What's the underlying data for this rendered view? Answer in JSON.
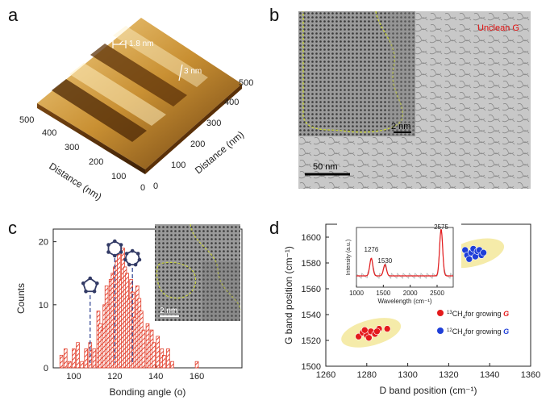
{
  "panels": {
    "a": {
      "letter": "a",
      "step_label": "1.8 nm",
      "height_label": "3 nm",
      "x_axis_title": "Distance (nm)",
      "y_axis_title": "Distance (nm)",
      "x_ticks": [
        "500",
        "400",
        "300",
        "200",
        "100",
        "0"
      ],
      "y_ticks": [
        "0",
        "100",
        "200",
        "300",
        "400",
        "500"
      ]
    },
    "b": {
      "letter": "b",
      "label": "Unclean G",
      "inset_scale": "2 nm",
      "main_scale": "50 nm"
    },
    "c": {
      "letter": "c",
      "inset_scale": "2 nm"
    },
    "d": {
      "letter": "d"
    }
  },
  "chart_data": [
    {
      "type": "bar",
      "panel": "c",
      "title": "",
      "xlabel": "Bonding angle (o)",
      "ylabel": "Counts",
      "xlim": [
        90,
        182
      ],
      "ylim": [
        0,
        22
      ],
      "xticks": [
        100,
        120,
        140,
        160
      ],
      "yticks": [
        0,
        10,
        20
      ],
      "bin_width": 1.5,
      "bins": [
        [
          94,
          2
        ],
        [
          96,
          3
        ],
        [
          98,
          1
        ],
        [
          100,
          3
        ],
        [
          102,
          4
        ],
        [
          104,
          1
        ],
        [
          106,
          3
        ],
        [
          108,
          4
        ],
        [
          110,
          3
        ],
        [
          112,
          9
        ],
        [
          113,
          7
        ],
        [
          114,
          6
        ],
        [
          115,
          10
        ],
        [
          116,
          13
        ],
        [
          117,
          10
        ],
        [
          118,
          14
        ],
        [
          119,
          15
        ],
        [
          120,
          16
        ],
        [
          121,
          17
        ],
        [
          122,
          18
        ],
        [
          123,
          14
        ],
        [
          124,
          19
        ],
        [
          125,
          16
        ],
        [
          126,
          15
        ],
        [
          127,
          11
        ],
        [
          128,
          14
        ],
        [
          129,
          12
        ],
        [
          130,
          8
        ],
        [
          131,
          13
        ],
        [
          132,
          11
        ],
        [
          133,
          9
        ],
        [
          134,
          6
        ],
        [
          136,
          7
        ],
        [
          137,
          4
        ],
        [
          138,
          6
        ],
        [
          139,
          4
        ],
        [
          141,
          5
        ],
        [
          143,
          3
        ],
        [
          144,
          2
        ],
        [
          146,
          3
        ],
        [
          148,
          1
        ],
        [
          160,
          1
        ]
      ],
      "reference_angles": [
        108,
        120,
        128.6
      ],
      "ring_sizes": [
        5,
        6,
        7
      ]
    },
    {
      "type": "scatter",
      "panel": "d",
      "xlabel": "D band position (cm⁻¹)",
      "ylabel": "G band position (cm⁻¹)",
      "xlim": [
        1260,
        1360
      ],
      "ylim": [
        1500,
        1610
      ],
      "xticks": [
        1260,
        1280,
        1300,
        1320,
        1340,
        1360
      ],
      "yticks": [
        1500,
        1520,
        1540,
        1560,
        1580,
        1600
      ],
      "series": [
        {
          "name": "¹³CH₄ for growing G",
          "legend_sup": "13",
          "legend_text": "CH",
          "legend_sub": "4",
          "legend_tail": "for growing ",
          "legend_italic": "G",
          "color": "#e41a1c",
          "points": [
            [
              1276,
              1523
            ],
            [
              1278,
              1526
            ],
            [
              1280,
              1524
            ],
            [
              1282,
              1527
            ],
            [
              1284,
              1525
            ],
            [
              1286,
              1529
            ],
            [
              1285,
              1527
            ],
            [
              1290,
              1529
            ],
            [
              1281,
              1522
            ],
            [
              1279,
              1528
            ]
          ]
        },
        {
          "name": "¹²CH₄ for growing G",
          "legend_sup": "12",
          "legend_text": "CH",
          "legend_sub": "4",
          "legend_tail": "for growing ",
          "legend_italic": "G",
          "color": "#1f3fd8",
          "points": [
            [
              1328,
              1590
            ],
            [
              1329,
              1586
            ],
            [
              1331,
              1588
            ],
            [
              1332,
              1591
            ],
            [
              1333,
              1585
            ],
            [
              1334,
              1589
            ],
            [
              1335,
              1590
            ],
            [
              1336,
              1586
            ],
            [
              1337,
              1588
            ],
            [
              1330,
              1583
            ]
          ]
        }
      ],
      "inset": {
        "type": "line",
        "xlabel": "Wavelength (cm⁻¹)",
        "ylabel": "Intensity (a.u.)",
        "xlim": [
          1000,
          2800
        ],
        "xticks": [
          1000,
          1500,
          2000,
          2500
        ],
        "peaks": [
          {
            "x": 1276,
            "label": "1276"
          },
          {
            "x": 1530,
            "label": "1530"
          },
          {
            "x": 2575,
            "label": "2575"
          }
        ]
      }
    }
  ]
}
